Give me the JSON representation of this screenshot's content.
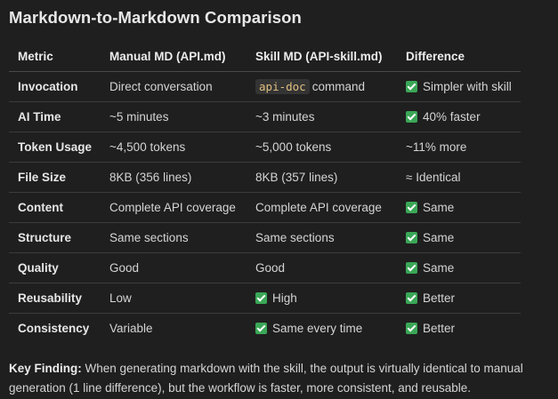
{
  "title": "Markdown-to-Markdown Comparison",
  "table": {
    "headers": [
      "Metric",
      "Manual MD (API.md)",
      "Skill MD (API-skill.md)",
      "Difference"
    ],
    "rows": [
      {
        "metric": "Invocation",
        "manual": "Direct conversation",
        "skill_code": "api-doc",
        "skill": "command",
        "diff": "Simpler with skill",
        "skill_check": false,
        "diff_check": true
      },
      {
        "metric": "AI Time",
        "manual": "~5 minutes",
        "skill": "~3 minutes",
        "diff": "40% faster",
        "skill_check": false,
        "diff_check": true
      },
      {
        "metric": "Token Usage",
        "manual": "~4,500 tokens",
        "skill": "~5,000 tokens",
        "diff": "~11% more",
        "skill_check": false,
        "diff_check": false
      },
      {
        "metric": "File Size",
        "manual": "8KB (356 lines)",
        "skill": "8KB (357 lines)",
        "diff": "≈ Identical",
        "skill_check": false,
        "diff_check": false
      },
      {
        "metric": "Content",
        "manual": "Complete API coverage",
        "skill": "Complete API coverage",
        "diff": "Same",
        "skill_check": false,
        "diff_check": true
      },
      {
        "metric": "Structure",
        "manual": "Same sections",
        "skill": "Same sections",
        "diff": "Same",
        "skill_check": false,
        "diff_check": true
      },
      {
        "metric": "Quality",
        "manual": "Good",
        "skill": "Good",
        "diff": "Same",
        "skill_check": false,
        "diff_check": true
      },
      {
        "metric": "Reusability",
        "manual": "Low",
        "skill": "High",
        "diff": "Better",
        "skill_check": true,
        "diff_check": true
      },
      {
        "metric": "Consistency",
        "manual": "Variable",
        "skill": "Same every time",
        "diff": "Better",
        "skill_check": true,
        "diff_check": true
      }
    ]
  },
  "finding": {
    "label": "Key Finding:",
    "text": "When generating markdown with the skill, the output is virtually identical to manual generation (1 line difference), but the workflow is faster, more consistent, and reusable."
  },
  "icons": {
    "check": "check-mark-icon",
    "check_color": "#3aa757"
  }
}
